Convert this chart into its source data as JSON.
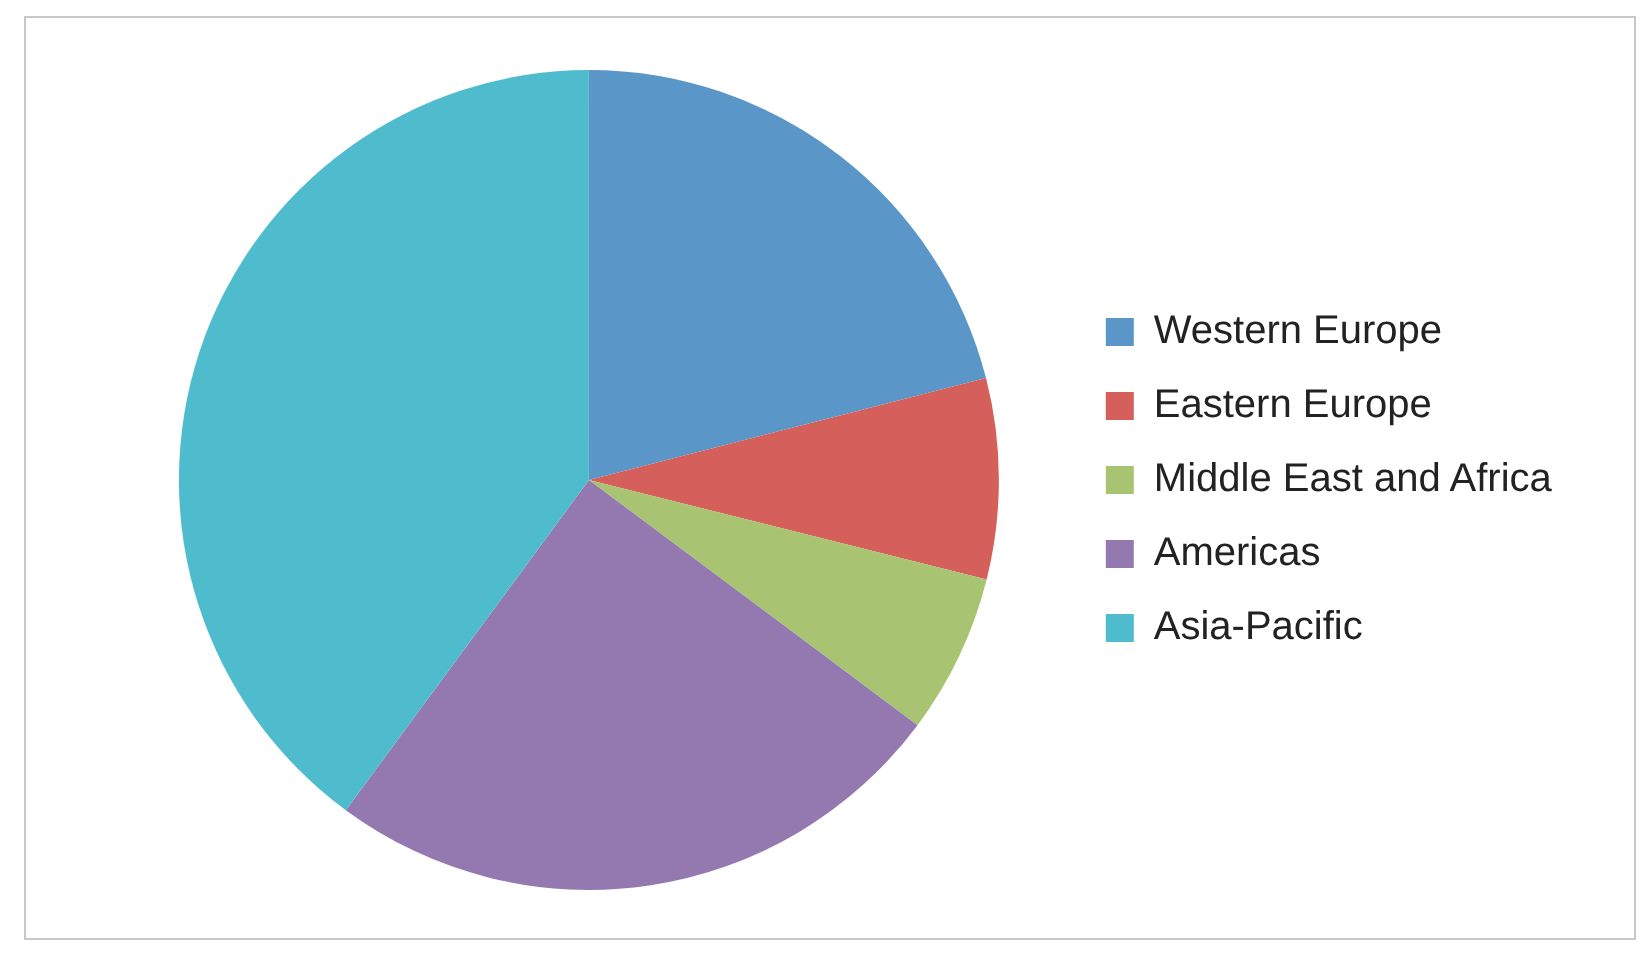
{
  "chart_data": {
    "type": "pie",
    "categories": [
      "Western Europe",
      "Eastern Europe",
      "Middle East and Africa",
      "Americas",
      "Asia-Pacific"
    ],
    "values": [
      21,
      7.9,
      6.3,
      24.9,
      39.9
    ],
    "colors": [
      "#5b96c8",
      "#d45f5b",
      "#a8c472",
      "#9479b0",
      "#4fbcce"
    ],
    "legend": "right"
  }
}
